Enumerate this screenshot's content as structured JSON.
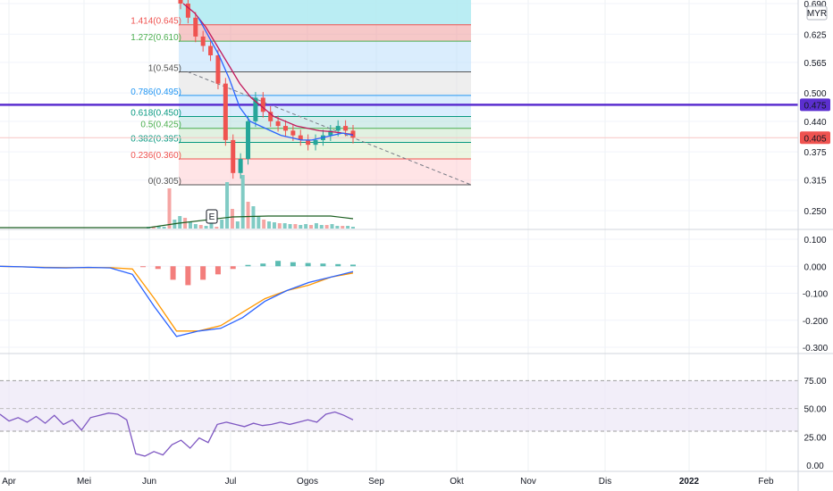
{
  "chart_data": [
    {
      "type": "candlestick",
      "pane": "price",
      "currency": "MYR",
      "x_ticks": [
        "Apr",
        "Mei",
        "Jun",
        "Jul",
        "Ogos",
        "Sep",
        "Okt",
        "Nov",
        "Dis",
        "2022",
        "Feb"
      ],
      "y_ticks": [
        "0.690",
        "0.625",
        "0.565",
        "0.500",
        "0.440",
        "0.375",
        "0.315",
        "0.250"
      ],
      "ylim": [
        0.22,
        0.7
      ],
      "horizontal_line": {
        "label": "0.475",
        "value": 0.475,
        "color": "#5b2fcf"
      },
      "last_price": {
        "label": "0.405",
        "value": 0.405,
        "color": "#ef5350"
      },
      "earnings_marker": "E",
      "fibonacci": [
        {
          "ratio": "1.414",
          "price": "0.645",
          "value": 0.645,
          "color": "#ef5350"
        },
        {
          "ratio": "1.272",
          "price": "0.610",
          "value": 0.61,
          "color": "#4caf50"
        },
        {
          "ratio": "1",
          "price": "0.545",
          "value": 0.545,
          "color": "#555555"
        },
        {
          "ratio": "0.786",
          "price": "0.495",
          "value": 0.495,
          "color": "#2196f3"
        },
        {
          "ratio": "0.618",
          "price": "0.450",
          "value": 0.45,
          "color": "#089981"
        },
        {
          "ratio": "0.5",
          "price": "0.425",
          "value": 0.425,
          "color": "#4caf50"
        },
        {
          "ratio": "0.382",
          "price": "0.395",
          "value": 0.395,
          "color": "#089981"
        },
        {
          "ratio": "0.236",
          "price": "0.360",
          "value": 0.36,
          "color": "#ef5350"
        },
        {
          "ratio": "0",
          "price": "0.305",
          "value": 0.305,
          "color": "#555555"
        }
      ],
      "candles_sample_close": [
        0.69,
        0.66,
        0.62,
        0.6,
        0.58,
        0.52,
        0.4,
        0.33,
        0.36,
        0.44,
        0.49,
        0.46,
        0.44,
        0.43,
        0.42,
        0.41,
        0.4,
        0.39,
        0.4,
        0.41,
        0.42,
        0.43,
        0.42,
        0.405
      ],
      "ema_series": [
        0.66,
        0.62,
        0.58,
        0.53,
        0.47,
        0.44,
        0.43,
        0.42,
        0.41,
        0.405,
        0.4,
        0.4,
        0.405,
        0.41,
        0.415,
        0.41
      ],
      "sma_series": [
        0.69,
        0.67,
        0.64,
        0.6,
        0.56,
        0.52,
        0.49,
        0.47,
        0.45,
        0.44,
        0.43,
        0.425,
        0.42,
        0.418,
        0.415,
        0.412
      ]
    },
    {
      "type": "macd",
      "pane": "macd",
      "y_ticks": [
        "0.100",
        "0.000",
        "-0.100",
        "-0.200",
        "-0.300"
      ],
      "ylim": [
        -0.32,
        0.12
      ],
      "macd": [
        0.0,
        -0.002,
        -0.005,
        -0.006,
        -0.004,
        -0.006,
        -0.03,
        -0.15,
        -0.26,
        -0.24,
        -0.23,
        -0.19,
        -0.13,
        -0.09,
        -0.06,
        -0.04,
        -0.02
      ],
      "signal": [
        0.0,
        -0.002,
        -0.004,
        -0.005,
        -0.005,
        -0.005,
        -0.01,
        -0.12,
        -0.24,
        -0.24,
        -0.22,
        -0.17,
        -0.12,
        -0.09,
        -0.07,
        -0.04,
        -0.025
      ],
      "histogram": [
        -0.002,
        -0.01,
        -0.05,
        -0.07,
        -0.05,
        -0.03,
        -0.01,
        0.005,
        0.01,
        0.02,
        0.015,
        0.012,
        0.01,
        0.008,
        0.006
      ]
    },
    {
      "type": "line",
      "pane": "rsi",
      "y_ticks": [
        "75.00",
        "50.00",
        "25.00",
        "0.00"
      ],
      "ylim": [
        0,
        100
      ],
      "band": [
        30,
        70
      ],
      "midline": 50,
      "rsi": [
        45,
        39,
        42,
        38,
        43,
        37,
        44,
        36,
        40,
        31,
        42,
        44,
        46,
        45,
        40,
        10,
        8,
        12,
        9,
        18,
        22,
        15,
        24,
        20,
        36,
        38,
        36,
        34,
        37,
        35,
        36,
        38,
        36,
        38,
        40,
        38,
        45,
        47,
        44,
        40
      ]
    }
  ]
}
